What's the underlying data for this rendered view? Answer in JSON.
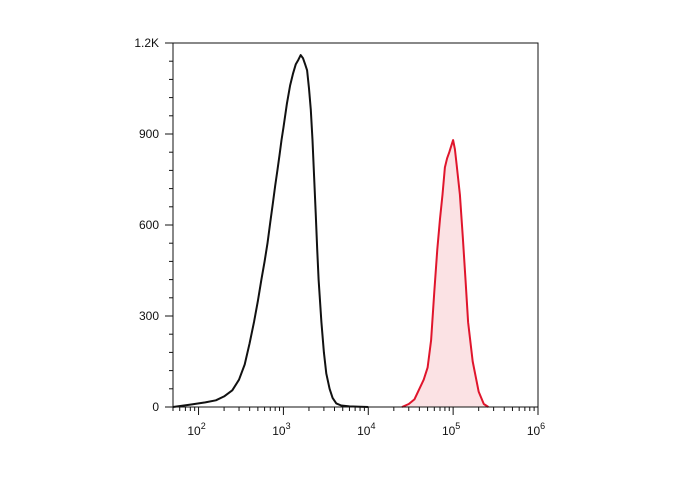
{
  "chart_data": {
    "type": "area",
    "x_scale": "log",
    "xlim": [
      50,
      1000000
    ],
    "ylim": [
      0,
      1200
    ],
    "x_ticks": [
      {
        "value": 100,
        "base": "10",
        "exp": "2"
      },
      {
        "value": 1000,
        "base": "10",
        "exp": "3"
      },
      {
        "value": 10000,
        "base": "10",
        "exp": "4"
      },
      {
        "value": 100000,
        "base": "10",
        "exp": "5"
      },
      {
        "value": 1000000,
        "base": "10",
        "exp": "6"
      }
    ],
    "y_ticks": [
      {
        "value": 0,
        "label": "0"
      },
      {
        "value": 300,
        "label": "300"
      },
      {
        "value": 600,
        "label": "600"
      },
      {
        "value": 900,
        "label": "900"
      },
      {
        "value": 1200,
        "label": "1.2K"
      }
    ],
    "grid": false,
    "legend": "none",
    "series": [
      {
        "color": "#111111",
        "fill": "none",
        "x": [
          50,
          80,
          120,
          160,
          200,
          250,
          300,
          350,
          400,
          450,
          500,
          550,
          600,
          650,
          700,
          750,
          800,
          850,
          900,
          950,
          1000,
          1100,
          1200,
          1300,
          1400,
          1500,
          1600,
          1700,
          1800,
          1900,
          2000,
          2100,
          2200,
          2300,
          2400,
          2500,
          2600,
          2800,
          3000,
          3200,
          3500,
          3800,
          4200,
          4800,
          6000,
          8000,
          10000
        ],
        "y": [
          0,
          8,
          15,
          22,
          35,
          55,
          90,
          140,
          210,
          280,
          350,
          420,
          480,
          540,
          610,
          670,
          730,
          780,
          830,
          880,
          920,
          1000,
          1060,
          1100,
          1130,
          1145,
          1160,
          1150,
          1130,
          1110,
          1050,
          980,
          880,
          760,
          640,
          520,
          420,
          280,
          180,
          110,
          60,
          30,
          12,
          5,
          2,
          1,
          0
        ]
      },
      {
        "color": "#e0152c",
        "fill": "#fbe2e4",
        "x": [
          25000,
          30000,
          35000,
          40000,
          45000,
          50000,
          55000,
          60000,
          65000,
          70000,
          75000,
          80000,
          85000,
          90000,
          95000,
          100000,
          105000,
          110000,
          120000,
          130000,
          140000,
          150000,
          170000,
          200000,
          230000,
          260000
        ],
        "y": [
          0,
          10,
          25,
          60,
          90,
          130,
          220,
          380,
          520,
          620,
          700,
          790,
          820,
          840,
          860,
          880,
          850,
          800,
          700,
          560,
          420,
          280,
          150,
          50,
          10,
          0
        ]
      }
    ]
  }
}
